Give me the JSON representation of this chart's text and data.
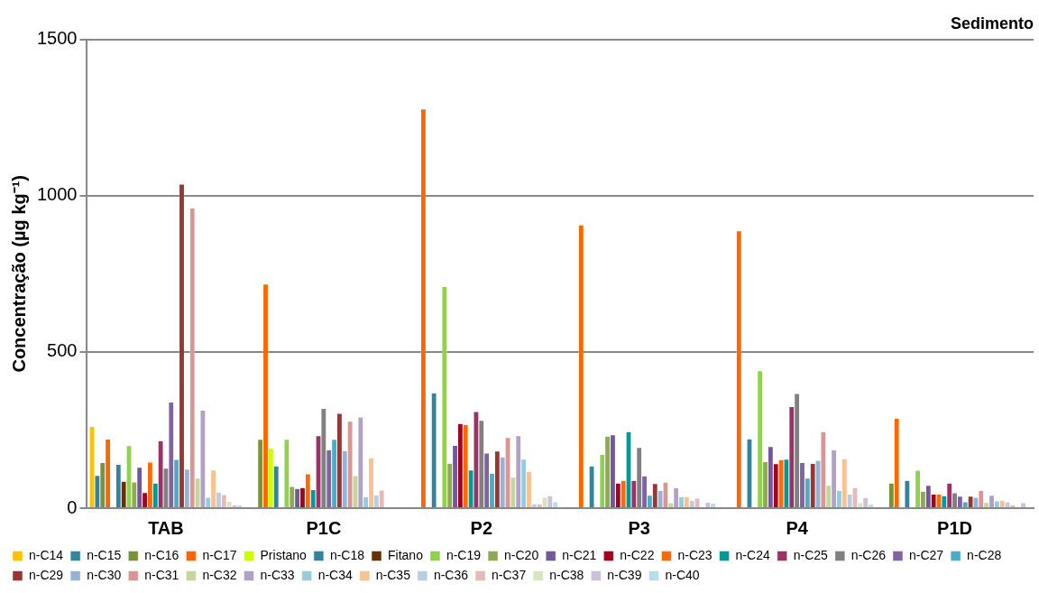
{
  "chart_data": {
    "type": "bar",
    "title": "Sedimento",
    "ylabel": "Concentração (µg kg⁻¹)",
    "categories": [
      "TAB",
      "P1C",
      "P2",
      "P3",
      "P4",
      "P1D"
    ],
    "ylim": [
      0,
      1500
    ],
    "yticks": [
      0,
      500,
      1000,
      1500
    ],
    "grid": "y",
    "legend": "bottom",
    "series": [
      {
        "name": "n-C14",
        "color": "#ffc000",
        "values": [
          261,
          0,
          0,
          0,
          0,
          0
        ]
      },
      {
        "name": "n-C15",
        "color": "#31859c",
        "values": [
          105,
          0,
          0,
          0,
          0,
          0
        ]
      },
      {
        "name": "n-C16",
        "color": "#77933c",
        "values": [
          146,
          220,
          0,
          0,
          0,
          80
        ]
      },
      {
        "name": "n-C17",
        "color": "#ff6600",
        "values": [
          221,
          717,
          1277,
          906,
          887,
          287
        ]
      },
      {
        "name": "Pristano",
        "color": "#ccff00",
        "values": [
          2,
          192,
          0,
          0,
          0,
          0
        ]
      },
      {
        "name": "n-C18",
        "color": "#31849b",
        "values": [
          140,
          135,
          369,
          135,
          222,
          89
        ]
      },
      {
        "name": "Fitano",
        "color": "#663300",
        "values": [
          86,
          0,
          0,
          0,
          0,
          0
        ]
      },
      {
        "name": "n-C19",
        "color": "#92d050",
        "values": [
          200,
          220,
          709,
          172,
          440,
          121
        ]
      },
      {
        "name": "n-C20",
        "color": "#8faa52",
        "values": [
          84,
          69,
          144,
          230,
          149,
          54
        ]
      },
      {
        "name": "n-C21",
        "color": "#72579a",
        "values": [
          131,
          63,
          201,
          235,
          197,
          73
        ]
      },
      {
        "name": "n-C22",
        "color": "#a50021",
        "values": [
          50,
          66,
          271,
          80,
          142,
          45
        ]
      },
      {
        "name": "n-C23",
        "color": "#ff6a00",
        "values": [
          147,
          110,
          267,
          89,
          155,
          45
        ]
      },
      {
        "name": "n-C24",
        "color": "#009999",
        "values": [
          80,
          59,
          122,
          245,
          157,
          40
        ]
      },
      {
        "name": "n-C25",
        "color": "#993366",
        "values": [
          216,
          232,
          309,
          89,
          325,
          80
        ]
      },
      {
        "name": "n-C26",
        "color": "#808080",
        "values": [
          128,
          319,
          281,
          194,
          367,
          49
        ]
      },
      {
        "name": "n-C27",
        "color": "#8064a2",
        "values": [
          339,
          186,
          176,
          103,
          146,
          38
        ]
      },
      {
        "name": "n-C28",
        "color": "#4bacc6",
        "values": [
          156,
          220,
          112,
          41,
          96,
          20
        ]
      },
      {
        "name": "n-C29",
        "color": "#953735",
        "values": [
          1037,
          303,
          183,
          79,
          143,
          38
        ]
      },
      {
        "name": "n-C30",
        "color": "#95b3d7",
        "values": [
          125,
          184,
          164,
          57,
          153,
          35
        ]
      },
      {
        "name": "n-C31",
        "color": "#d99694",
        "values": [
          960,
          278,
          226,
          83,
          245,
          57
        ]
      },
      {
        "name": "n-C32",
        "color": "#c3d69b",
        "values": [
          96,
          104,
          99,
          17,
          73,
          18
        ]
      },
      {
        "name": "n-C33",
        "color": "#b2a1c7",
        "values": [
          313,
          292,
          232,
          66,
          186,
          41
        ]
      },
      {
        "name": "n-C34",
        "color": "#93cddd",
        "values": [
          35,
          37,
          157,
          37,
          56,
          23
        ]
      },
      {
        "name": "n-C35",
        "color": "#fac090",
        "values": [
          122,
          160,
          118,
          37,
          158,
          25
        ]
      },
      {
        "name": "n-C36",
        "color": "#b9cde5",
        "values": [
          51,
          42,
          14,
          25,
          45,
          20
        ]
      },
      {
        "name": "n-C37",
        "color": "#e6b9b8",
        "values": [
          43,
          58,
          14,
          32,
          66,
          10
        ]
      },
      {
        "name": "n-C38",
        "color": "#d7e4bd",
        "values": [
          22,
          0,
          35,
          0,
          17,
          null
        ]
      },
      {
        "name": "n-C39",
        "color": "#ccc1da",
        "values": [
          10,
          0,
          40,
          19,
          34,
          17
        ]
      },
      {
        "name": "n-C40",
        "color": "#b7dee8",
        "values": [
          10,
          null,
          20,
          16,
          13,
          0
        ]
      }
    ]
  }
}
